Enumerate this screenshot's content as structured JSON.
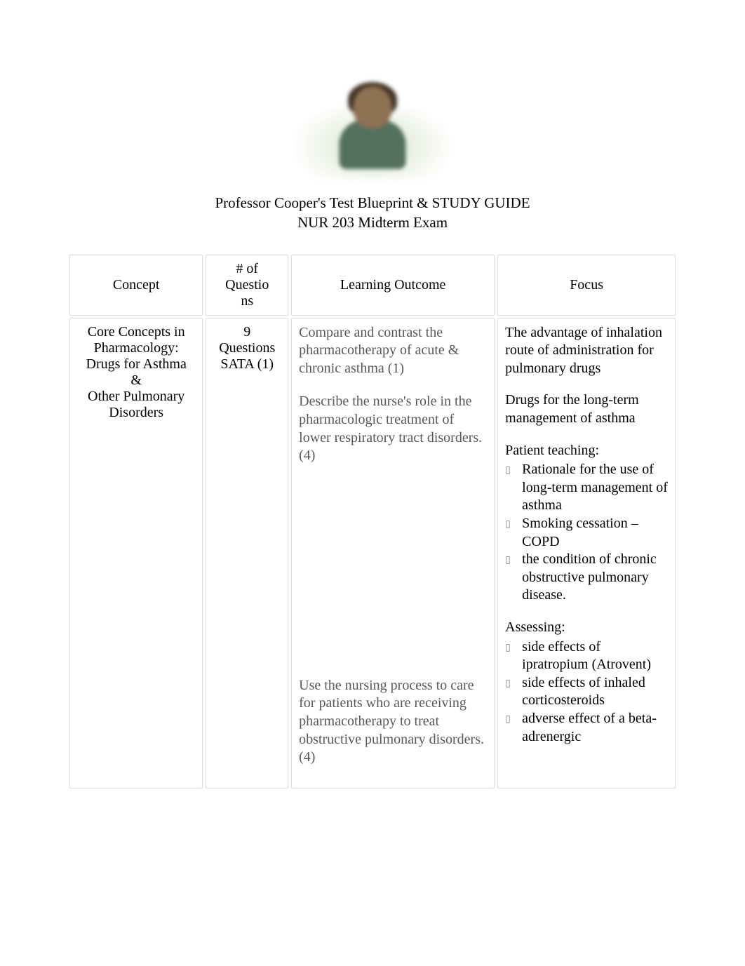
{
  "title_line1": "Professor Cooper's Test Blueprint & STUDY GUIDE",
  "title_line2": "NUR 203 Midterm Exam",
  "table": {
    "headers": {
      "concept": "Concept",
      "questions_l1": "# of",
      "questions_l2": "Questio",
      "questions_l3": "ns",
      "outcome": "Learning Outcome",
      "focus": "Focus"
    },
    "row1": {
      "concept_l1": "Core Concepts in",
      "concept_l2": "Pharmacology:",
      "concept_l3": "Drugs for Asthma",
      "concept_l4": "&",
      "concept_l5": "Other Pulmonary",
      "concept_l6": "Disorders",
      "qs_l1": "9",
      "qs_l2": "Questions",
      "qs_l3": "SATA (1)",
      "outcome1": "Compare and contrast the pharmacotherapy of acute & chronic asthma (1)",
      "outcome2": "Describe the nurse's role in the pharmacologic treatment of lower respiratory tract disorders. (4)",
      "outcome3": "Use the nursing process to care for patients who are receiving pharmacotherapy to treat obstructive pulmonary disorders. (4)",
      "focus1": "The advantage of inhalation route of administration for pulmonary drugs",
      "focus2": "Drugs for the long-term management of asthma",
      "focus3_title": "Patient teaching:",
      "focus3_b1": "Rationale for the use of long-term management of asthma",
      "focus3_b2": "Smoking cessation – COPD",
      "focus3_b3": "the condition of chronic obstructive pulmonary disease.",
      "focus4_title": "Assessing:",
      "focus4_b1": "side effects of ipratropium (Atrovent)",
      "focus4_b2": "side effects of inhaled corticosteroids",
      "focus4_b3": "adverse effect of a beta-adrenergic"
    }
  }
}
